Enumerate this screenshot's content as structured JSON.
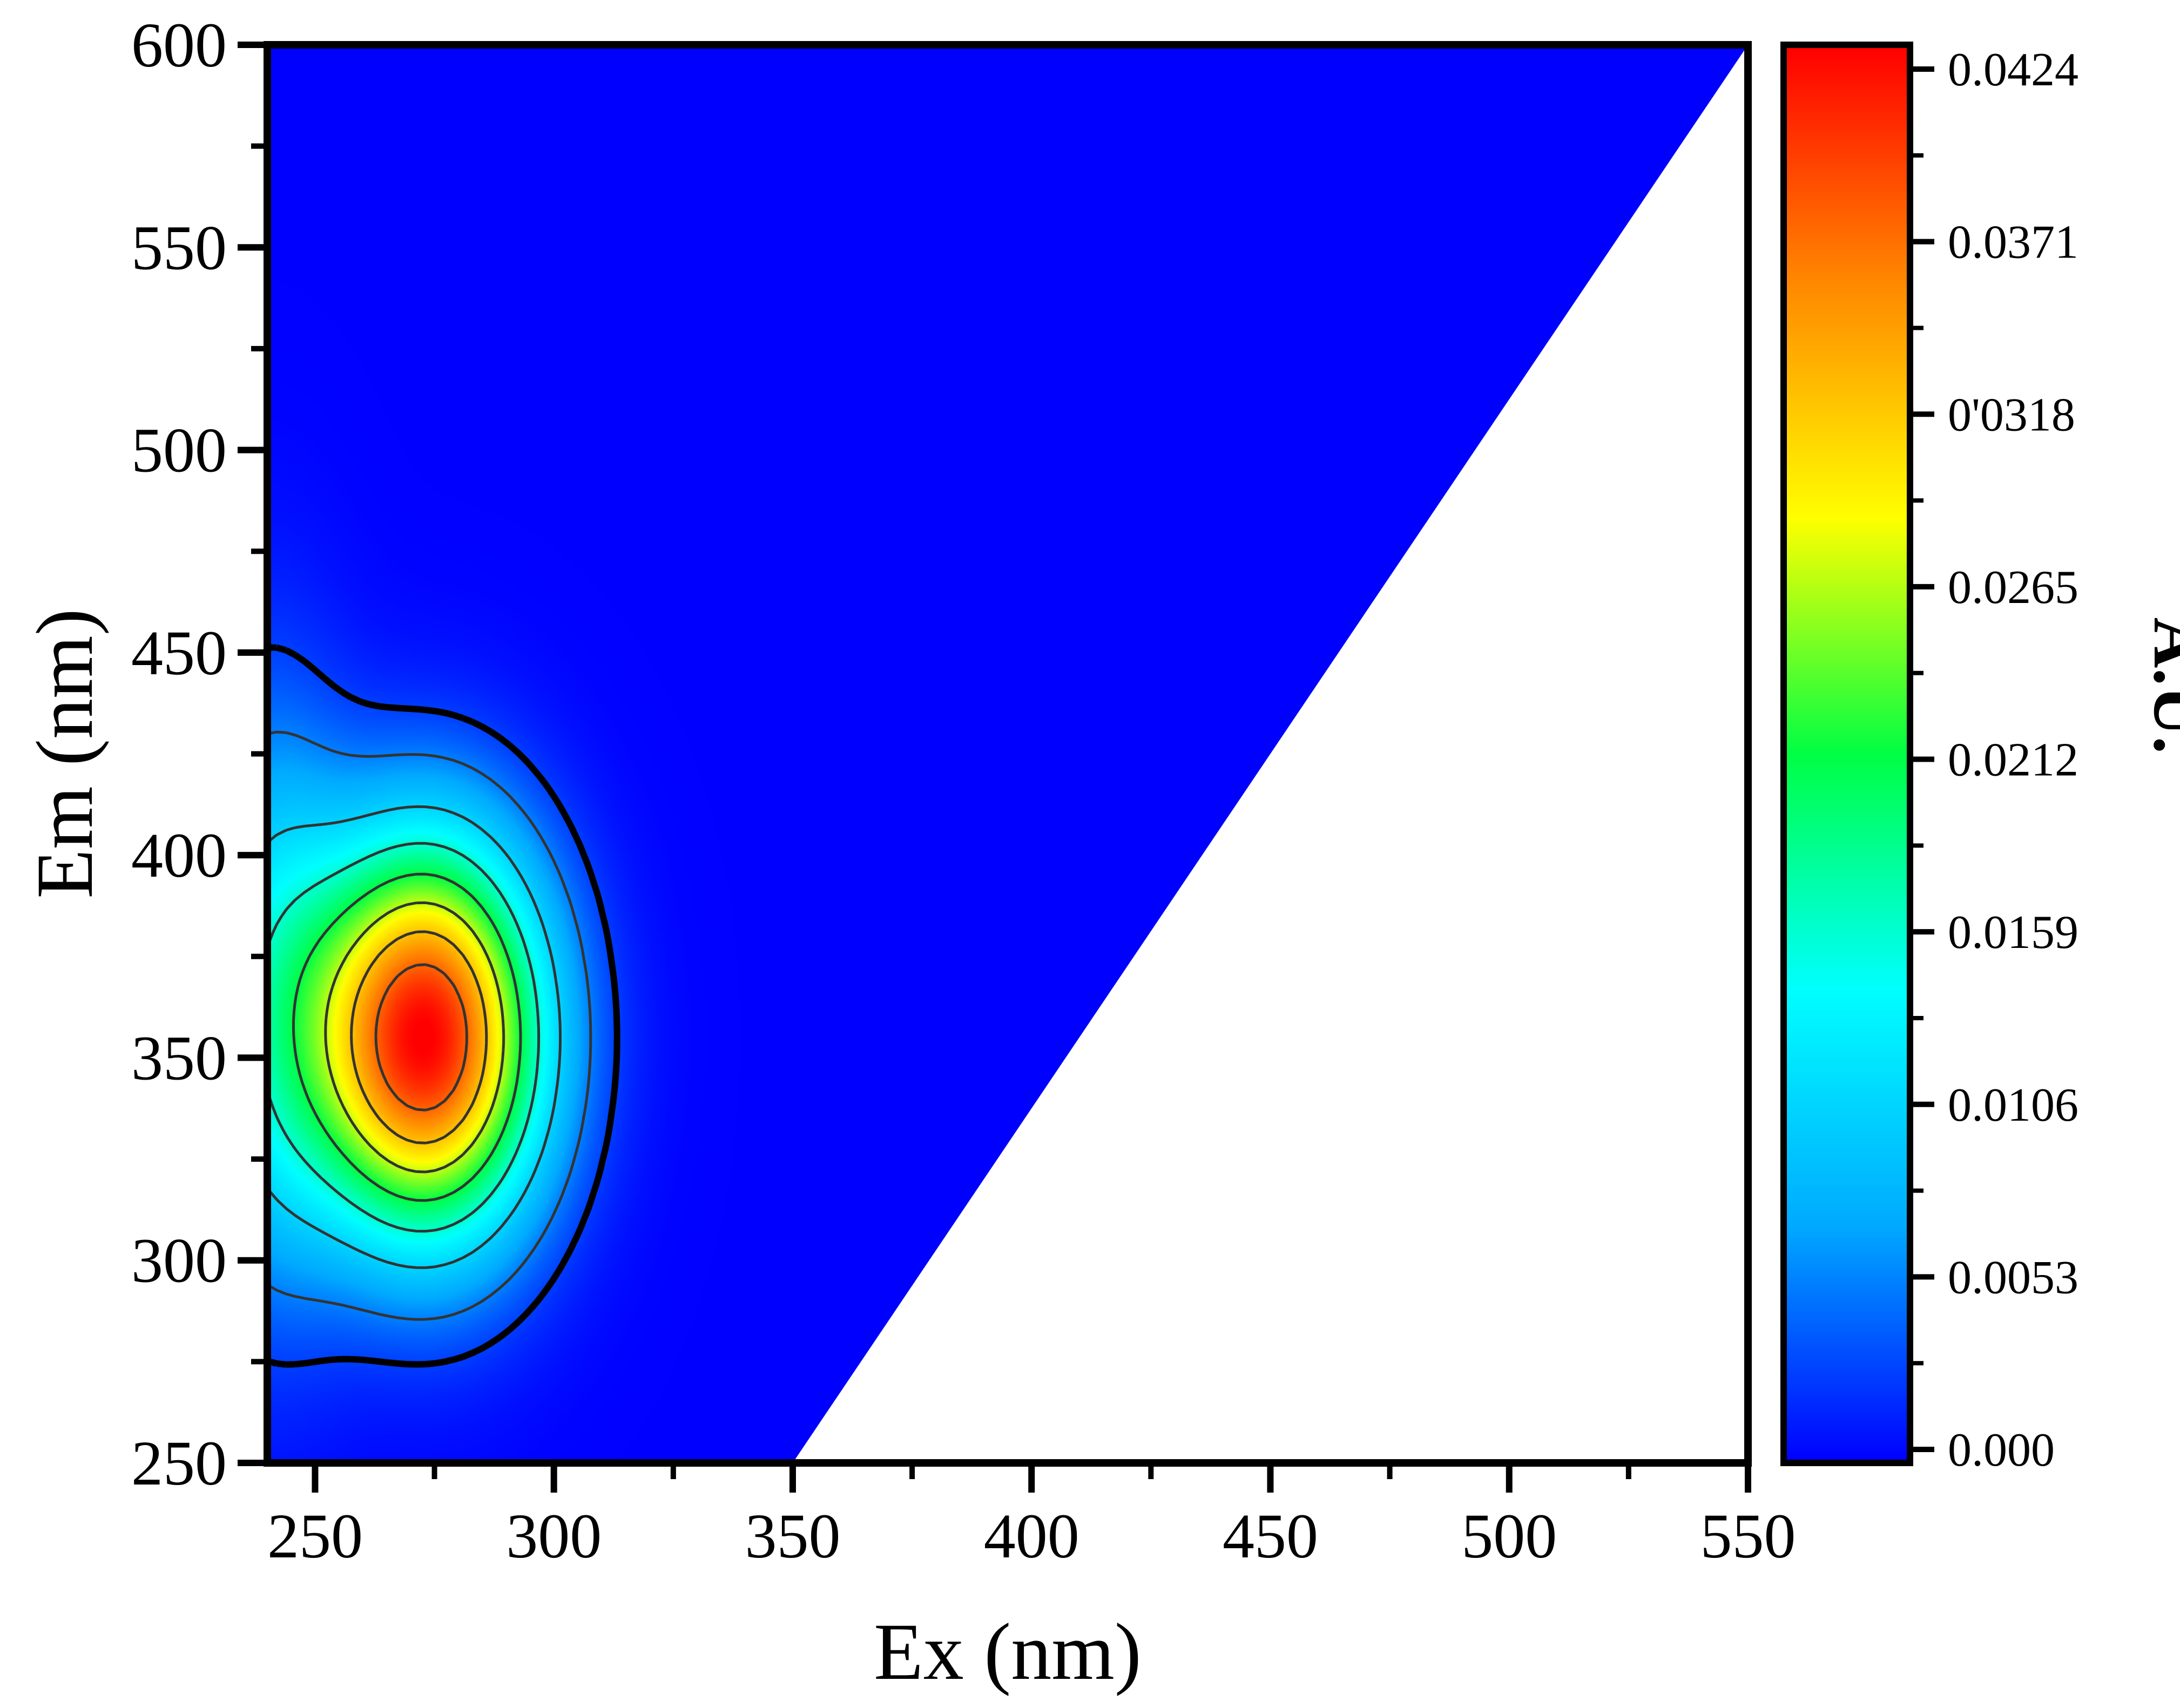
{
  "chart_data": {
    "type": "heatmap",
    "subtype": "excitation-emission contour map",
    "title": "",
    "xlabel": "Ex (nm)",
    "ylabel": "Em (nm)",
    "xlim": [
      240,
      550
    ],
    "ylim": [
      250,
      600
    ],
    "x_ticks": [
      250,
      300,
      350,
      400,
      450,
      500,
      550
    ],
    "y_ticks": [
      250,
      300,
      350,
      400,
      450,
      500,
      550,
      600
    ],
    "grid": false,
    "background_value": 0.0,
    "blank_region": "Em < Ex + (Ex - 350) region below diagonal from (350, 250) to (550, 600)",
    "peak": {
      "ex": 273,
      "em": 355,
      "value": 0.0424
    },
    "peak_sigma": {
      "ex": 17,
      "em": 34
    },
    "edge_feature": {
      "ex": 240,
      "em": 365,
      "value": 0.011
    },
    "contour_levels": [
      0.0026,
      0.0053,
      0.0106,
      0.0159,
      0.0212,
      0.0265,
      0.0318,
      0.0371
    ],
    "colorbar": {
      "label": "A.U.",
      "min": 0.0,
      "max": 0.0424,
      "tick_labels": [
        "0.0424",
        "0.0371",
        "0'0318",
        "0.0265",
        "0.0212",
        "0.0159",
        "0.0106",
        "0.0053",
        "0.000"
      ],
      "tick_values": [
        0.0424,
        0.0371,
        0.0318,
        0.0265,
        0.0212,
        0.0159,
        0.0106,
        0.0053,
        0.0
      ]
    },
    "colormap": [
      "#0000ff",
      "#00aaff",
      "#00ffff",
      "#00ff44",
      "#ffff00",
      "#ff8800",
      "#ff0000"
    ]
  },
  "labels": {
    "x_ticks": [
      "250",
      "300",
      "350",
      "400",
      "450",
      "500",
      "550"
    ],
    "y_ticks": [
      "250",
      "300",
      "350",
      "400",
      "450",
      "500",
      "550",
      "600"
    ]
  }
}
